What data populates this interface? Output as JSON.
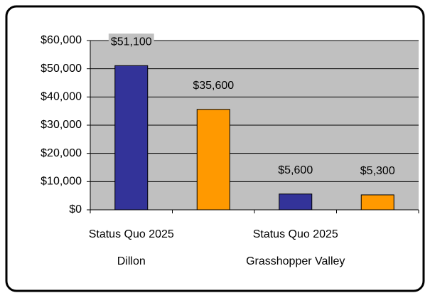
{
  "chart_data": {
    "type": "bar",
    "categories": [
      [
        "Status Quo 2025",
        "Dillon"
      ],
      null,
      [
        "Status Quo 2025",
        "Grasshopper Valley"
      ],
      null
    ],
    "values": [
      51100,
      35600,
      5600,
      5300
    ],
    "value_labels": [
      "$51,100",
      "$35,600",
      "$5,600",
      "$5,300"
    ],
    "colors": [
      "#333399",
      "#ff9900",
      "#333399",
      "#ff9900"
    ],
    "ylim": [
      0,
      60000
    ],
    "yticks": [
      {
        "value": 0,
        "label": "$0"
      },
      {
        "value": 10000,
        "label": "$10,000"
      },
      {
        "value": 20000,
        "label": "$20,000"
      },
      {
        "value": 30000,
        "label": "$30,000"
      },
      {
        "value": 40000,
        "label": "$40,000"
      },
      {
        "value": 50000,
        "label": "$50,000"
      },
      {
        "value": 60000,
        "label": "$60,000"
      }
    ],
    "grid": true
  }
}
